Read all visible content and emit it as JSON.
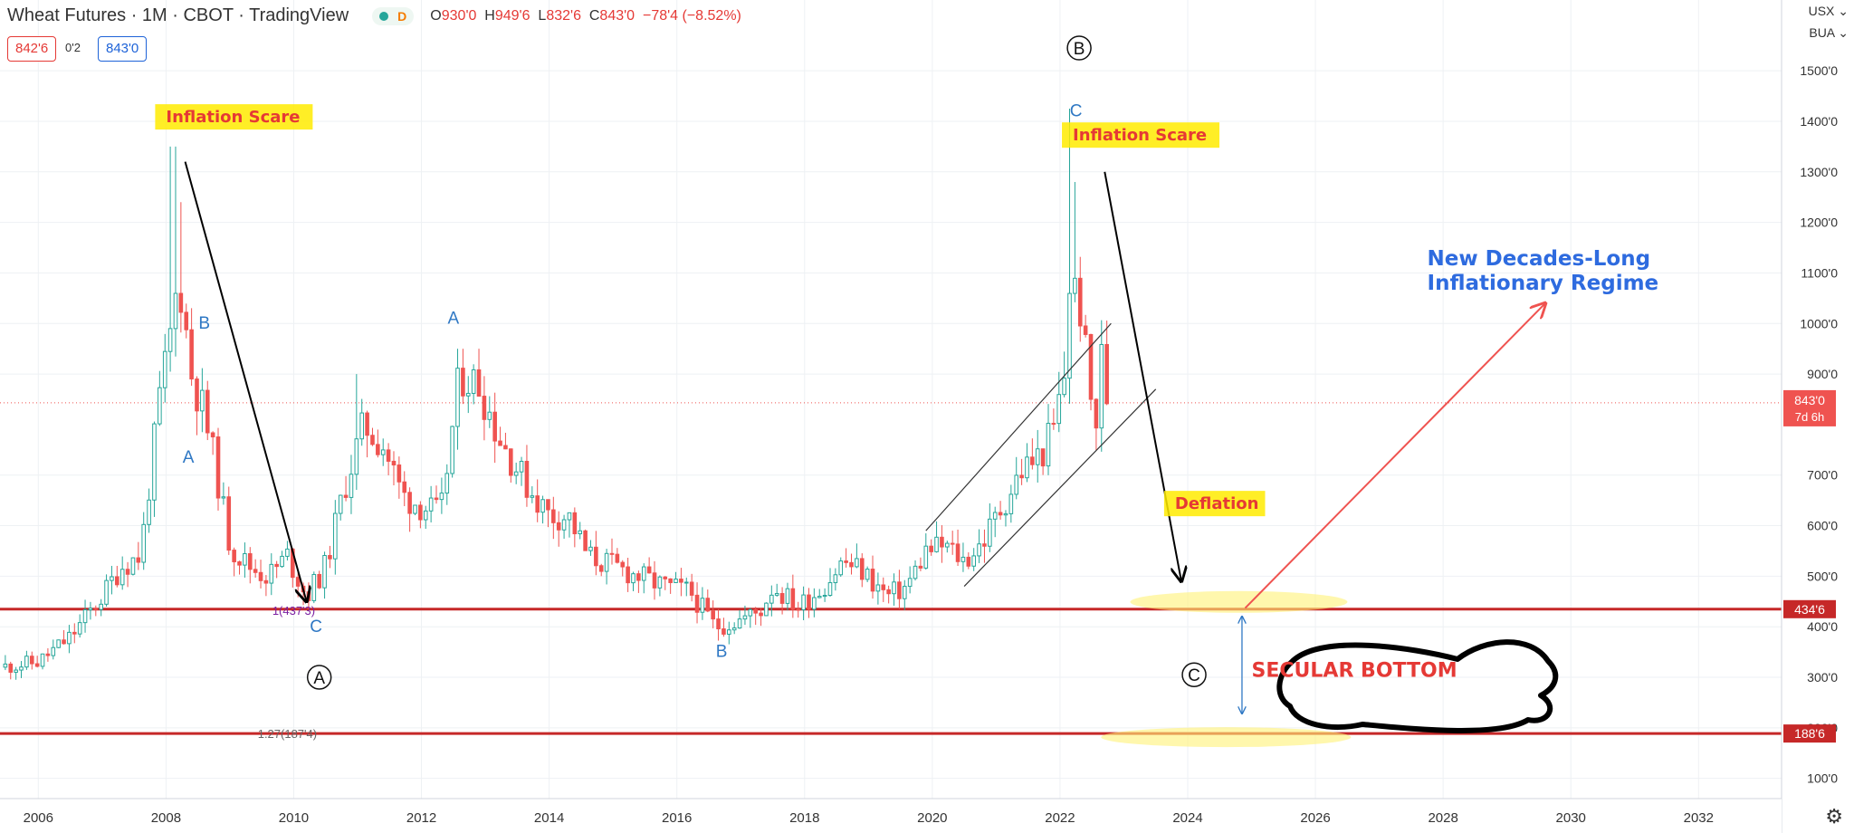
{
  "header": {
    "symbol": "Wheat Futures · 1M · CBOT · TradingView",
    "interval_badge": "D",
    "ohlc": {
      "o_label": "O",
      "o": "930'0",
      "h_label": "H",
      "h": "949'6",
      "l_label": "L",
      "l": "832'6",
      "c_label": "C",
      "c": "843'0",
      "change": "−78'4 (−8.52%)"
    }
  },
  "trade_panel": {
    "sell": "842'6",
    "spread": "0'2",
    "buy": "843'0"
  },
  "currency": {
    "unit": "USX",
    "unit2": "BUA"
  },
  "colors": {
    "bull": "#26a69a",
    "bear": "#ef5350",
    "level": "#c62828",
    "wave": "#2f78c4",
    "highlight": "#ffeb00"
  },
  "chart_data": {
    "type": "candlestick",
    "xlim": [
      2005.4,
      2033.3
    ],
    "ylim": [
      60,
      1640
    ],
    "price_scale_ticks": [
      "1500'0",
      "1400'0",
      "1300'0",
      "1200'0",
      "1100'0",
      "1000'0",
      "900'0",
      "700'0",
      "600'0",
      "500'0",
      "400'0",
      "300'0",
      "200'0",
      "100'0"
    ],
    "price_scale_values": [
      1500,
      1400,
      1300,
      1200,
      1100,
      1000,
      900,
      700,
      600,
      500,
      400,
      300,
      200,
      100
    ],
    "time_scale_ticks": [
      "2006",
      "2008",
      "2010",
      "2012",
      "2014",
      "2016",
      "2018",
      "2020",
      "2022",
      "2024",
      "2026",
      "2028",
      "2030",
      "2032"
    ],
    "time_scale_values": [
      2006,
      2008,
      2010,
      2012,
      2014,
      2016,
      2018,
      2020,
      2022,
      2024,
      2026,
      2028,
      2030,
      2032
    ],
    "last_price": {
      "value": 843,
      "label": "843'0",
      "countdown": "7d 6h"
    },
    "levels": [
      {
        "value": 434.75,
        "label": "434'6"
      },
      {
        "value": 188.75,
        "label": "188'6"
      }
    ],
    "price_path": [
      [
        2005.4,
        320
      ],
      [
        2006.0,
        330
      ],
      [
        2006.5,
        380
      ],
      [
        2007.0,
        460
      ],
      [
        2007.3,
        520
      ],
      [
        2007.6,
        540
      ],
      [
        2007.9,
        850
      ],
      [
        2008.1,
        1000
      ],
      [
        2008.2,
        1100
      ],
      [
        2008.4,
        900
      ],
      [
        2008.6,
        820
      ],
      [
        2008.8,
        700
      ],
      [
        2009.0,
        560
      ],
      [
        2009.3,
        520
      ],
      [
        2009.6,
        500
      ],
      [
        2009.9,
        540
      ],
      [
        2010.2,
        460
      ],
      [
        2010.5,
        520
      ],
      [
        2010.8,
        680
      ],
      [
        2011.1,
        800
      ],
      [
        2011.4,
        760
      ],
      [
        2011.7,
        660
      ],
      [
        2012.0,
        640
      ],
      [
        2012.3,
        620
      ],
      [
        2012.6,
        900
      ],
      [
        2012.9,
        880
      ],
      [
        2013.2,
        780
      ],
      [
        2013.6,
        690
      ],
      [
        2014.0,
        620
      ],
      [
        2014.3,
        620
      ],
      [
        2014.6,
        540
      ],
      [
        2015.0,
        520
      ],
      [
        2015.4,
        500
      ],
      [
        2015.8,
        480
      ],
      [
        2016.2,
        470
      ],
      [
        2016.6,
        400
      ],
      [
        2016.9,
        410
      ],
      [
        2017.3,
        430
      ],
      [
        2017.5,
        480
      ],
      [
        2017.9,
        440
      ],
      [
        2018.3,
        480
      ],
      [
        2018.6,
        530
      ],
      [
        2018.9,
        510
      ],
      [
        2019.3,
        460
      ],
      [
        2019.6,
        480
      ],
      [
        2019.9,
        550
      ],
      [
        2020.2,
        560
      ],
      [
        2020.5,
        530
      ],
      [
        2020.8,
        570
      ],
      [
        2021.1,
        640
      ],
      [
        2021.4,
        710
      ],
      [
        2021.7,
        740
      ],
      [
        2021.9,
        790
      ],
      [
        2022.1,
        920
      ],
      [
        2022.15,
        1080
      ],
      [
        2022.3,
        1050
      ],
      [
        2022.45,
        880
      ],
      [
        2022.55,
        780
      ],
      [
        2022.65,
        930
      ],
      [
        2022.75,
        843
      ]
    ],
    "spike_highs": [
      [
        2008.1,
        1350
      ],
      [
        2008.2,
        1240
      ],
      [
        2022.17,
        1425
      ],
      [
        2022.25,
        1280
      ],
      [
        2011.0,
        900
      ],
      [
        2012.6,
        950
      ]
    ],
    "channel": [
      {
        "x1": 2019.9,
        "y1": 590,
        "x2": 2022.8,
        "y2": 1000
      },
      {
        "x1": 2020.5,
        "y1": 480,
        "x2": 2023.5,
        "y2": 870
      }
    ],
    "wave_labels": [
      {
        "text": "B",
        "x": 2008.6,
        "y": 990
      },
      {
        "text": "A",
        "x": 2008.35,
        "y": 725
      },
      {
        "text": "C",
        "x": 2010.35,
        "y": 390
      },
      {
        "text": "A",
        "x": 2012.5,
        "y": 1000
      },
      {
        "text": "B",
        "x": 2016.7,
        "y": 340
      },
      {
        "text": "C",
        "x": 2022.25,
        "y": 1410
      }
    ],
    "circled_labels": [
      {
        "text": "B",
        "x": 2022.3,
        "y": 1545
      },
      {
        "text": "A",
        "x": 2010.4,
        "y": 300
      },
      {
        "text": "C",
        "x": 2024.1,
        "y": 305
      }
    ],
    "annotations": [
      {
        "text": "Inflation Scare",
        "x": 2008.0,
        "y": 1398
      },
      {
        "text": "Inflation Scare",
        "x": 2022.2,
        "y": 1362
      },
      {
        "text": "Deflation",
        "x": 2023.8,
        "y": 633
      },
      {
        "text": "SECULAR BOTTOM",
        "x": 2025.0,
        "y": 315
      }
    ],
    "regime_text": [
      "New Decades-Long",
      "Inflationary Regime"
    ],
    "fib_labels": [
      "1(437'3)",
      "1.27(187'4)"
    ],
    "arrows": [
      {
        "x1": 2008.3,
        "y1": 1320,
        "x2": 2010.2,
        "y2": 450,
        "color": "#000000"
      },
      {
        "x1": 2022.7,
        "y1": 1300,
        "x2": 2023.9,
        "y2": 490,
        "color": "#000000"
      },
      {
        "x1": 2024.9,
        "y1": 437,
        "x2": 2029.6,
        "y2": 1040,
        "color": "#ef5350"
      }
    ]
  }
}
